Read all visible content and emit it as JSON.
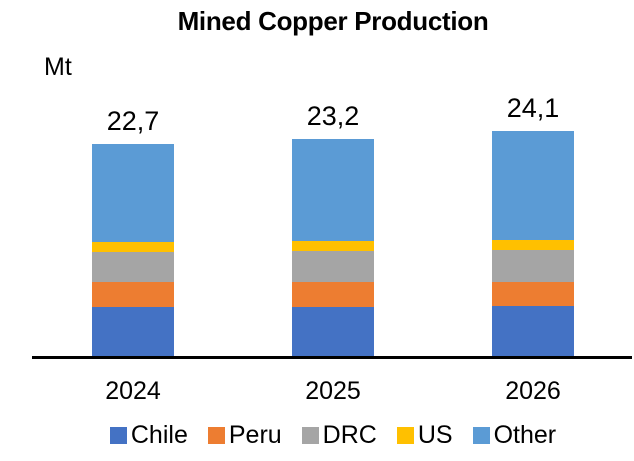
{
  "chart_data": {
    "type": "bar",
    "stacked": true,
    "title": "Mined Copper Production",
    "ylabel": "Mt",
    "xlabel": "",
    "grid": false,
    "legend_position": "bottom",
    "categories": [
      "2024",
      "2025",
      "2026"
    ],
    "series": [
      {
        "name": "Chile",
        "color": "#4472C4",
        "values": [
          5.3,
          5.3,
          5.4
        ]
      },
      {
        "name": "Peru",
        "color": "#ED7D31",
        "values": [
          2.7,
          2.7,
          2.6
        ]
      },
      {
        "name": "DRC",
        "color": "#A5A5A5",
        "values": [
          3.2,
          3.3,
          3.4
        ]
      },
      {
        "name": "US",
        "color": "#FFC000",
        "values": [
          1.1,
          1.1,
          1.1
        ]
      },
      {
        "name": "Other",
        "color": "#5B9BD5",
        "values": [
          10.4,
          10.8,
          11.6
        ]
      }
    ],
    "totals": [
      22.7,
      23.2,
      24.1
    ],
    "totals_labels": [
      "22,7",
      "23,2",
      "24,1"
    ],
    "axis_color": "#000000",
    "background_color": "#FFFFFF"
  }
}
